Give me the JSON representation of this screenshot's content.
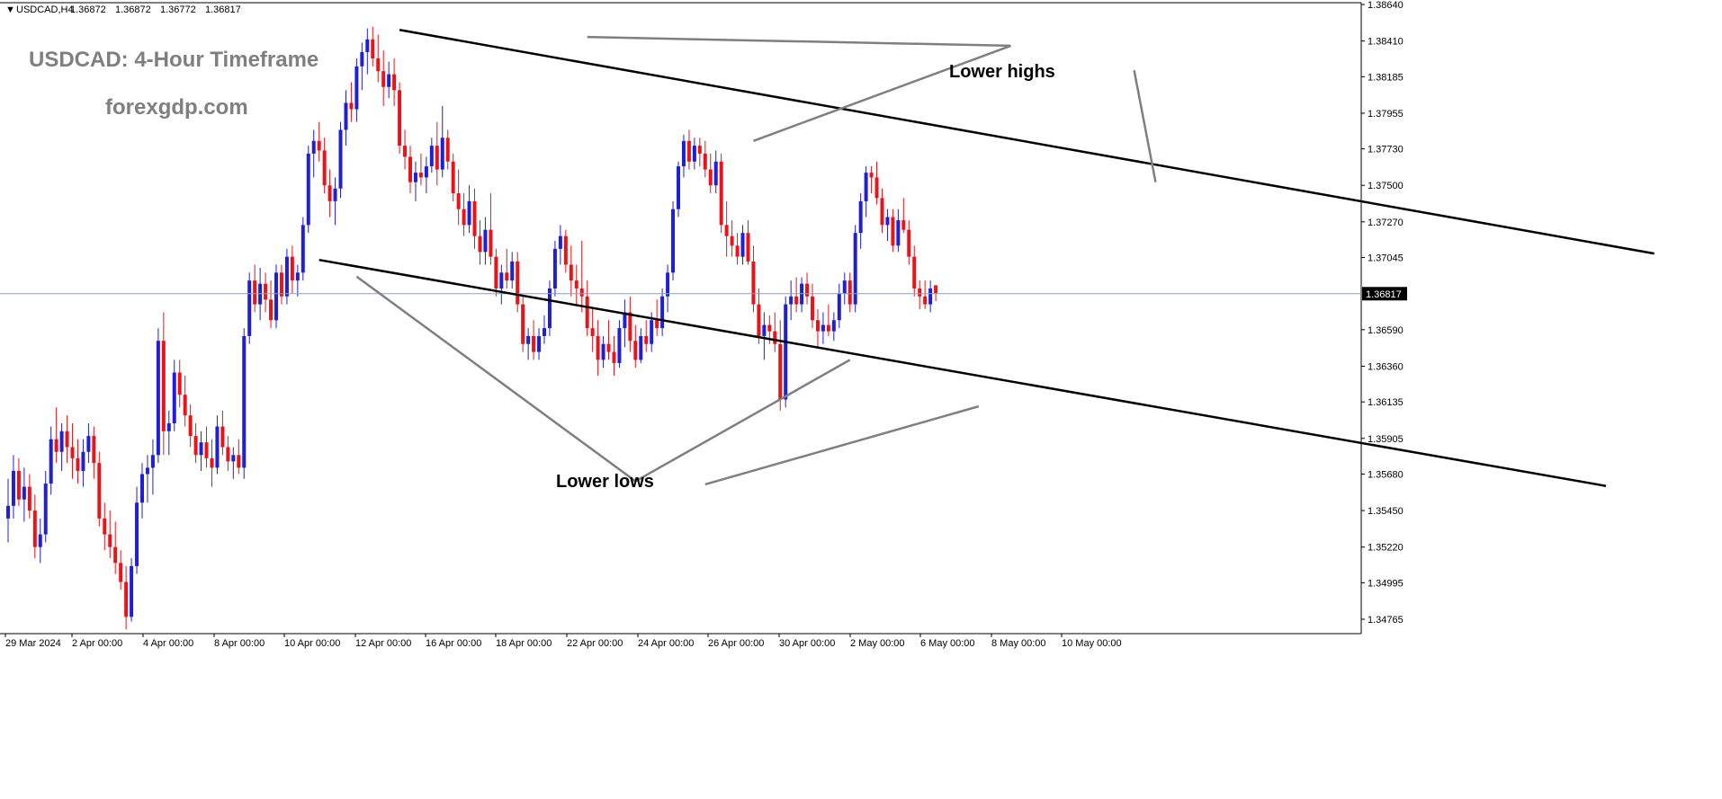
{
  "chart_header": {
    "symbol_label": "USDCAD,H4",
    "ohlc": [
      "1.36872",
      "1.36872",
      "1.36772",
      "1.36817"
    ]
  },
  "watermark": {
    "title": "USDCAD: 4-Hour Timeframe",
    "site": "forexgdp.com"
  },
  "annotations": {
    "lower_highs": "Lower highs",
    "lower_lows": "Lower lows"
  },
  "price_scale": {
    "ticks": [
      "1.38640",
      "1.38410",
      "1.38185",
      "1.37955",
      "1.37730",
      "1.37500",
      "1.37270",
      "1.37045",
      "1.36590",
      "1.36360",
      "1.36135",
      "1.35905",
      "1.35680",
      "1.35450",
      "1.35220",
      "1.34995",
      "1.34765"
    ],
    "current_price_label": "1.36817"
  },
  "time_scale": {
    "labels": [
      "29 Mar 2024",
      "2 Apr 00:00",
      "4 Apr 00:00",
      "8 Apr 00:00",
      "10 Apr 00:00",
      "12 Apr 00:00",
      "16 Apr 00:00",
      "18 Apr 00:00",
      "22 Apr 00:00",
      "24 Apr 00:00",
      "26 Apr 00:00",
      "30 Apr 00:00",
      "2 May 00:00",
      "6 May 00:00",
      "8 May 00:00",
      "10 May 00:00"
    ]
  },
  "colors": {
    "bull": "#1f1fd6",
    "bear": "#e8141a",
    "trendline": "#000000",
    "pointer": "#7f7f7f",
    "watermark": "#7f7f7f",
    "price_line": "#8aa0b8"
  },
  "chart_data": {
    "type": "candlestick",
    "symbol": "USDCAD",
    "timeframe": "H4",
    "ylim": [
      1.3465,
      1.3872
    ],
    "current_price": 1.36817,
    "candles": [
      [
        1.354,
        1.3565,
        1.3525,
        1.3548
      ],
      [
        1.3548,
        1.358,
        1.354,
        1.357
      ],
      [
        1.357,
        1.3578,
        1.3548,
        1.3552
      ],
      [
        1.3552,
        1.3572,
        1.3538,
        1.356
      ],
      [
        1.356,
        1.3568,
        1.354,
        1.3545
      ],
      [
        1.3545,
        1.3555,
        1.3515,
        1.3522
      ],
      [
        1.3522,
        1.354,
        1.3512,
        1.353
      ],
      [
        1.353,
        1.357,
        1.3525,
        1.3562
      ],
      [
        1.3562,
        1.3598,
        1.3555,
        1.359
      ],
      [
        1.359,
        1.361,
        1.3575,
        1.3582
      ],
      [
        1.3582,
        1.36,
        1.357,
        1.3595
      ],
      [
        1.3595,
        1.3605,
        1.3575,
        1.3585
      ],
      [
        1.3585,
        1.36,
        1.3565,
        1.3578
      ],
      [
        1.3578,
        1.359,
        1.3562,
        1.357
      ],
      [
        1.357,
        1.359,
        1.356,
        1.3582
      ],
      [
        1.3582,
        1.36,
        1.3575,
        1.3592
      ],
      [
        1.3592,
        1.3598,
        1.3565,
        1.3575
      ],
      [
        1.3575,
        1.3582,
        1.3535,
        1.354
      ],
      [
        1.354,
        1.355,
        1.352,
        1.353
      ],
      [
        1.353,
        1.3545,
        1.3515,
        1.3522
      ],
      [
        1.3522,
        1.3538,
        1.3505,
        1.3512
      ],
      [
        1.3512,
        1.352,
        1.3495,
        1.35
      ],
      [
        1.35,
        1.351,
        1.347,
        1.3478
      ],
      [
        1.3478,
        1.3515,
        1.3475,
        1.351
      ],
      [
        1.351,
        1.356,
        1.3505,
        1.355
      ],
      [
        1.355,
        1.3575,
        1.354,
        1.3568
      ],
      [
        1.3568,
        1.358,
        1.355,
        1.3572
      ],
      [
        1.3572,
        1.359,
        1.3555,
        1.358
      ],
      [
        1.358,
        1.366,
        1.3575,
        1.3652
      ],
      [
        1.3652,
        1.367,
        1.358,
        1.3595
      ],
      [
        1.3595,
        1.3608,
        1.358,
        1.36
      ],
      [
        1.36,
        1.364,
        1.3595,
        1.3632
      ],
      [
        1.3632,
        1.364,
        1.361,
        1.3618
      ],
      [
        1.3618,
        1.363,
        1.3598,
        1.3605
      ],
      [
        1.3605,
        1.3612,
        1.3585,
        1.3592
      ],
      [
        1.3592,
        1.36,
        1.3575,
        1.358
      ],
      [
        1.358,
        1.3595,
        1.357,
        1.3588
      ],
      [
        1.3588,
        1.3598,
        1.3572,
        1.3578
      ],
      [
        1.3578,
        1.359,
        1.356,
        1.3572
      ],
      [
        1.3572,
        1.3605,
        1.3568,
        1.3598
      ],
      [
        1.3598,
        1.3608,
        1.358,
        1.3585
      ],
      [
        1.3585,
        1.3592,
        1.357,
        1.3576
      ],
      [
        1.3576,
        1.3585,
        1.3565,
        1.358
      ],
      [
        1.358,
        1.359,
        1.3568,
        1.3572
      ],
      [
        1.3572,
        1.366,
        1.3565,
        1.3655
      ],
      [
        1.3655,
        1.3695,
        1.365,
        1.369
      ],
      [
        1.369,
        1.37,
        1.367,
        1.3675
      ],
      [
        1.3675,
        1.3698,
        1.3665,
        1.3688
      ],
      [
        1.3688,
        1.3695,
        1.367,
        1.3678
      ],
      [
        1.3678,
        1.369,
        1.366,
        1.3665
      ],
      [
        1.3665,
        1.37,
        1.366,
        1.3695
      ],
      [
        1.3695,
        1.37,
        1.3675,
        1.368
      ],
      [
        1.368,
        1.371,
        1.3675,
        1.3705
      ],
      [
        1.3705,
        1.3712,
        1.3682,
        1.369
      ],
      [
        1.369,
        1.37,
        1.368,
        1.3695
      ],
      [
        1.3695,
        1.373,
        1.369,
        1.3725
      ],
      [
        1.3725,
        1.3775,
        1.372,
        1.377
      ],
      [
        1.377,
        1.3785,
        1.3755,
        1.3778
      ],
      [
        1.3778,
        1.379,
        1.3765,
        1.3772
      ],
      [
        1.3772,
        1.378,
        1.3745,
        1.375
      ],
      [
        1.375,
        1.376,
        1.373,
        1.374
      ],
      [
        1.374,
        1.3755,
        1.3725,
        1.3748
      ],
      [
        1.3748,
        1.379,
        1.3742,
        1.3785
      ],
      [
        1.3785,
        1.381,
        1.3775,
        1.3802
      ],
      [
        1.3802,
        1.3815,
        1.379,
        1.3798
      ],
      [
        1.3798,
        1.383,
        1.379,
        1.3825
      ],
      [
        1.3825,
        1.384,
        1.381,
        1.3834
      ],
      [
        1.3834,
        1.3849,
        1.382,
        1.3842
      ],
      [
        1.3842,
        1.385,
        1.3825,
        1.383
      ],
      [
        1.383,
        1.3845,
        1.3815,
        1.3822
      ],
      [
        1.3822,
        1.3835,
        1.38,
        1.3812
      ],
      [
        1.3812,
        1.3828,
        1.3805,
        1.382
      ],
      [
        1.382,
        1.383,
        1.38,
        1.381
      ],
      [
        1.381,
        1.3815,
        1.377,
        1.3775
      ],
      [
        1.3775,
        1.3785,
        1.376,
        1.3768
      ],
      [
        1.3768,
        1.3775,
        1.3745,
        1.3752
      ],
      [
        1.3752,
        1.3765,
        1.374,
        1.3758
      ],
      [
        1.3758,
        1.377,
        1.375,
        1.3755
      ],
      [
        1.3755,
        1.3768,
        1.3745,
        1.3762
      ],
      [
        1.3762,
        1.378,
        1.3758,
        1.3775
      ],
      [
        1.3775,
        1.379,
        1.375,
        1.376
      ],
      [
        1.376,
        1.38,
        1.3755,
        1.378
      ],
      [
        1.378,
        1.3785,
        1.376,
        1.3765
      ],
      [
        1.3765,
        1.377,
        1.374,
        1.3745
      ],
      [
        1.3745,
        1.376,
        1.3725,
        1.3735
      ],
      [
        1.3735,
        1.3745,
        1.3718,
        1.3725
      ],
      [
        1.3725,
        1.375,
        1.372,
        1.374
      ],
      [
        1.374,
        1.3748,
        1.371,
        1.3718
      ],
      [
        1.3718,
        1.3728,
        1.37,
        1.3708
      ],
      [
        1.3708,
        1.373,
        1.37,
        1.3722
      ],
      [
        1.3722,
        1.3745,
        1.37,
        1.3705
      ],
      [
        1.3705,
        1.371,
        1.368,
        1.3685
      ],
      [
        1.3685,
        1.37,
        1.3675,
        1.3695
      ],
      [
        1.3695,
        1.371,
        1.3685,
        1.369
      ],
      [
        1.369,
        1.3708,
        1.3685,
        1.3702
      ],
      [
        1.3702,
        1.3708,
        1.367,
        1.3675
      ],
      [
        1.3675,
        1.368,
        1.3645,
        1.365
      ],
      [
        1.365,
        1.366,
        1.364,
        1.3655
      ],
      [
        1.3655,
        1.3665,
        1.364,
        1.3645
      ],
      [
        1.3645,
        1.366,
        1.364,
        1.3655
      ],
      [
        1.3655,
        1.3668,
        1.365,
        1.366
      ],
      [
        1.366,
        1.369,
        1.3655,
        1.3685
      ],
      [
        1.3685,
        1.3715,
        1.368,
        1.371
      ],
      [
        1.371,
        1.3725,
        1.37,
        1.3718
      ],
      [
        1.3718,
        1.3722,
        1.3695,
        1.37
      ],
      [
        1.37,
        1.3712,
        1.368,
        1.369
      ],
      [
        1.369,
        1.37,
        1.3675,
        1.3685
      ],
      [
        1.3685,
        1.3715,
        1.367,
        1.368
      ],
      [
        1.368,
        1.369,
        1.3655,
        1.366
      ],
      [
        1.366,
        1.3672,
        1.3645,
        1.3655
      ],
      [
        1.3655,
        1.3665,
        1.363,
        1.364
      ],
      [
        1.364,
        1.3655,
        1.3635,
        1.365
      ],
      [
        1.365,
        1.3665,
        1.364,
        1.3645
      ],
      [
        1.3645,
        1.3655,
        1.363,
        1.3638
      ],
      [
        1.3638,
        1.3665,
        1.3635,
        1.366
      ],
      [
        1.366,
        1.3678,
        1.3648,
        1.367
      ],
      [
        1.367,
        1.368,
        1.3645,
        1.3652
      ],
      [
        1.3652,
        1.3662,
        1.3635,
        1.364
      ],
      [
        1.364,
        1.366,
        1.3638,
        1.3655
      ],
      [
        1.3655,
        1.3665,
        1.3645,
        1.365
      ],
      [
        1.365,
        1.367,
        1.3645,
        1.3665
      ],
      [
        1.3665,
        1.3678,
        1.3655,
        1.366
      ],
      [
        1.366,
        1.3685,
        1.3655,
        1.368
      ],
      [
        1.368,
        1.37,
        1.367,
        1.3695
      ],
      [
        1.3695,
        1.374,
        1.369,
        1.3735
      ],
      [
        1.3735,
        1.3765,
        1.373,
        1.3762
      ],
      [
        1.3762,
        1.3782,
        1.3755,
        1.3778
      ],
      [
        1.3778,
        1.3785,
        1.376,
        1.3765
      ],
      [
        1.3765,
        1.378,
        1.376,
        1.3775
      ],
      [
        1.3775,
        1.378,
        1.3762,
        1.377
      ],
      [
        1.377,
        1.3778,
        1.3755,
        1.376
      ],
      [
        1.376,
        1.377,
        1.3745,
        1.375
      ],
      [
        1.375,
        1.3772,
        1.3745,
        1.3765
      ],
      [
        1.3765,
        1.377,
        1.372,
        1.3725
      ],
      [
        1.3725,
        1.374,
        1.3705,
        1.3718
      ],
      [
        1.3718,
        1.3728,
        1.3705,
        1.3712
      ],
      [
        1.3712,
        1.372,
        1.37,
        1.3705
      ],
      [
        1.3705,
        1.3725,
        1.37,
        1.372
      ],
      [
        1.372,
        1.3728,
        1.37,
        1.3702
      ],
      [
        1.3702,
        1.3712,
        1.367,
        1.3675
      ],
      [
        1.3675,
        1.3685,
        1.365,
        1.3655
      ],
      [
        1.3655,
        1.367,
        1.364,
        1.3662
      ],
      [
        1.3662,
        1.3668,
        1.365,
        1.3658
      ],
      [
        1.3658,
        1.367,
        1.3645,
        1.365
      ],
      [
        1.365,
        1.3665,
        1.3608,
        1.3615
      ],
      [
        1.3615,
        1.368,
        1.361,
        1.3675
      ],
      [
        1.3675,
        1.369,
        1.3665,
        1.368
      ],
      [
        1.368,
        1.3692,
        1.367,
        1.3675
      ],
      [
        1.3675,
        1.3692,
        1.367,
        1.3688
      ],
      [
        1.3688,
        1.3695,
        1.3675,
        1.368
      ],
      [
        1.368,
        1.3688,
        1.366,
        1.3665
      ],
      [
        1.3665,
        1.3672,
        1.3648,
        1.3658
      ],
      [
        1.3658,
        1.367,
        1.365,
        1.3662
      ],
      [
        1.3662,
        1.3675,
        1.3655,
        1.3658
      ],
      [
        1.3658,
        1.367,
        1.3652,
        1.3665
      ],
      [
        1.3665,
        1.3688,
        1.366,
        1.3682
      ],
      [
        1.3682,
        1.3695,
        1.3675,
        1.369
      ],
      [
        1.369,
        1.3695,
        1.367,
        1.3675
      ],
      [
        1.3675,
        1.3725,
        1.367,
        1.372
      ],
      [
        1.372,
        1.3745,
        1.371,
        1.374
      ],
      [
        1.374,
        1.3762,
        1.373,
        1.3758
      ],
      [
        1.3758,
        1.3762,
        1.3745,
        1.3755
      ],
      [
        1.3755,
        1.3765,
        1.3738,
        1.3742
      ],
      [
        1.3742,
        1.3748,
        1.372,
        1.3725
      ],
      [
        1.3725,
        1.3735,
        1.3715,
        1.373
      ],
      [
        1.373,
        1.3735,
        1.3708,
        1.3712
      ],
      [
        1.3712,
        1.3735,
        1.3708,
        1.3728
      ],
      [
        1.3728,
        1.3742,
        1.372,
        1.3722
      ],
      [
        1.3722,
        1.3728,
        1.37,
        1.3705
      ],
      [
        1.3705,
        1.3712,
        1.368,
        1.3685
      ],
      [
        1.3685,
        1.369,
        1.3672,
        1.368
      ],
      [
        1.368,
        1.369,
        1.3672,
        1.3675
      ],
      [
        1.3675,
        1.369,
        1.367,
        1.3685
      ],
      [
        1.3687,
        1.3687,
        1.3677,
        1.3682
      ]
    ],
    "trendlines": [
      {
        "from": [
          73,
          1.3848
        ],
        "to": [
          307,
          1.3707
        ]
      },
      {
        "from": [
          58,
          1.3703
        ],
        "to": [
          298,
          1.35605
        ]
      }
    ],
    "pointers": [
      {
        "label": "lower_highs",
        "from": [
          187,
          1.3838
        ],
        "to": [
          108,
          1.38435
        ]
      },
      {
        "label": "lower_highs",
        "from": [
          187,
          1.3838
        ],
        "to": [
          139,
          1.3778
        ]
      },
      {
        "label": "lower_highs",
        "from": [
          210,
          1.38225
        ],
        "to": [
          214,
          1.3752
        ]
      },
      {
        "label": "lower_lows",
        "from": [
          117,
          1.35635
        ],
        "to": [
          65,
          1.36925
        ]
      },
      {
        "label": "lower_lows",
        "from": [
          117,
          1.35635
        ],
        "to": [
          157,
          1.364
        ]
      },
      {
        "label": "lower_lows",
        "from": [
          130,
          1.35615
        ],
        "to": [
          181,
          1.36107
        ]
      }
    ]
  }
}
